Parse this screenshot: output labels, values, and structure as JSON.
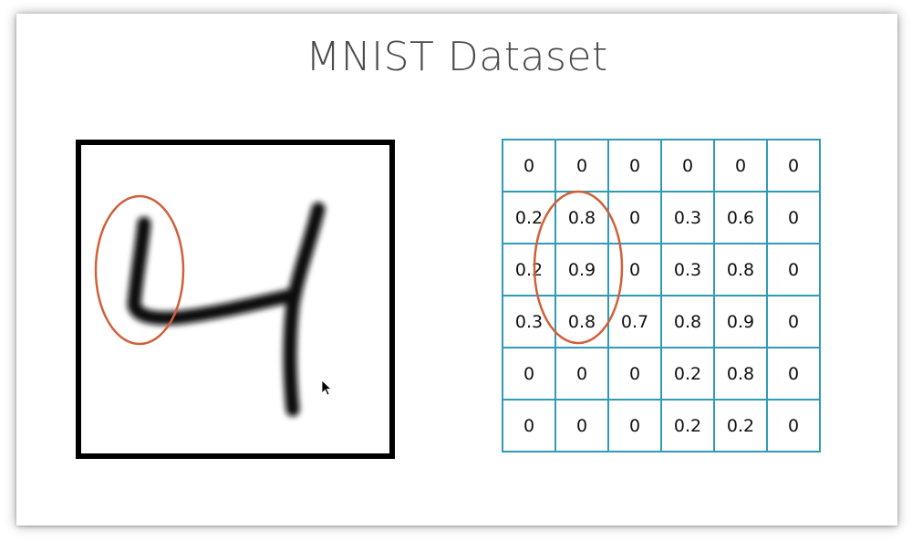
{
  "title": "MNIST Dataset",
  "grid": {
    "rows": [
      [
        "0",
        "0",
        "0",
        "0",
        "0",
        "0"
      ],
      [
        "0.2",
        "0.8",
        "0",
        "0.3",
        "0.6",
        "0"
      ],
      [
        "0.2",
        "0.9",
        "0",
        "0.3",
        "0.8",
        "0"
      ],
      [
        "0.3",
        "0.8",
        "0.7",
        "0.8",
        "0.9",
        "0"
      ],
      [
        "0",
        "0",
        "0",
        "0.2",
        "0.8",
        "0"
      ],
      [
        "0",
        "0",
        "0",
        "0.2",
        "0.2",
        "0"
      ]
    ]
  },
  "colors": {
    "grid_border": "#2f9bb8",
    "highlight_ellipse": "#d0603a",
    "digit_stroke": "#111111",
    "title_text": "#4b4b4b"
  },
  "icons": {
    "cursor": "mouse-pointer-icon"
  }
}
